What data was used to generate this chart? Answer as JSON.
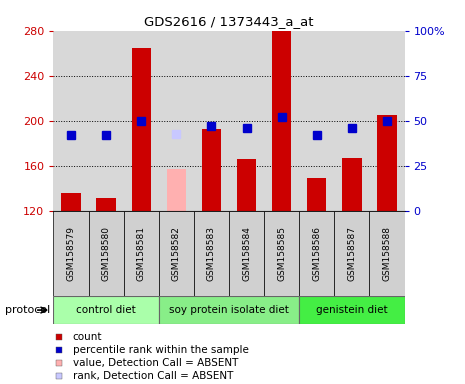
{
  "title": "GDS2616 / 1373443_a_at",
  "samples": [
    "GSM158579",
    "GSM158580",
    "GSM158581",
    "GSM158582",
    "GSM158583",
    "GSM158584",
    "GSM158585",
    "GSM158586",
    "GSM158587",
    "GSM158588"
  ],
  "bar_values": [
    136,
    132,
    265,
    null,
    193,
    166,
    280,
    149,
    167,
    205
  ],
  "bar_absent_values": [
    null,
    null,
    null,
    157,
    null,
    null,
    null,
    null,
    null,
    null
  ],
  "rank_values": [
    42,
    42,
    50,
    null,
    47,
    46,
    52,
    42,
    46,
    50
  ],
  "rank_absent_values": [
    null,
    null,
    null,
    43,
    null,
    null,
    null,
    null,
    null,
    null
  ],
  "bar_color": "#cc0000",
  "bar_absent_color": "#ffb0b0",
  "rank_color": "#0000cc",
  "rank_absent_color": "#c8c8ff",
  "ylim_left": [
    120,
    280
  ],
  "ylim_right": [
    0,
    100
  ],
  "yticks_left": [
    120,
    160,
    200,
    240,
    280
  ],
  "yticks_right": [
    0,
    25,
    50,
    75,
    100
  ],
  "groups": [
    {
      "label": "control diet",
      "start": 0,
      "end": 3,
      "color": "#aaffaa"
    },
    {
      "label": "soy protein isolate diet",
      "start": 3,
      "end": 7,
      "color": "#88ee88"
    },
    {
      "label": "genistein diet",
      "start": 7,
      "end": 10,
      "color": "#44ee44"
    }
  ],
  "protocol_label": "protocol",
  "legend_items": [
    {
      "color": "#cc0000",
      "label": "count"
    },
    {
      "color": "#0000cc",
      "label": "percentile rank within the sample"
    },
    {
      "color": "#ffb0b0",
      "label": "value, Detection Call = ABSENT"
    },
    {
      "color": "#c8c8ff",
      "label": "rank, Detection Call = ABSENT"
    }
  ],
  "bar_width": 0.55,
  "rank_marker_size": 6,
  "plot_bg": "#d8d8d8",
  "tick_label_bg": "#d0d0d0"
}
